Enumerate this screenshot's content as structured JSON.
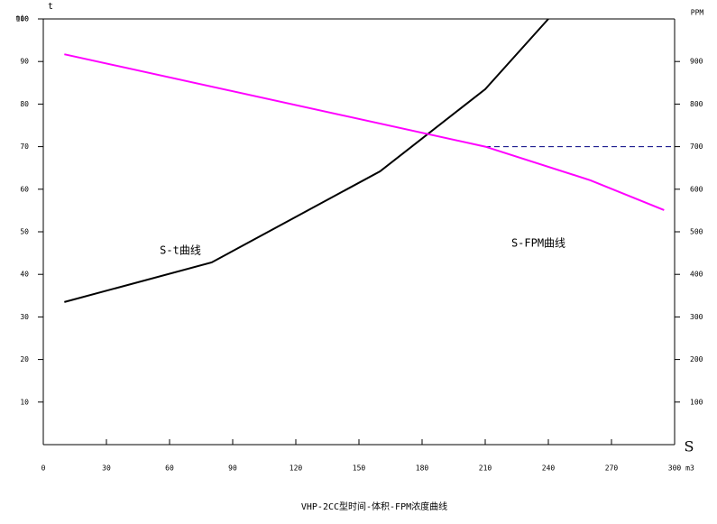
{
  "chart_data": {
    "type": "line",
    "title": "VHP-2CC型时间-体积-FPM浓度曲线",
    "y_label": "t",
    "y_unit": "min",
    "y2_unit": "PPM",
    "x_label": "S",
    "x_unit": "m3",
    "xlim": [
      0,
      300
    ],
    "xticks": [
      0,
      30,
      60,
      90,
      120,
      150,
      180,
      210,
      240,
      270,
      300
    ],
    "ylim": [
      0,
      100
    ],
    "yticks": [
      10,
      20,
      30,
      40,
      50,
      60,
      70,
      80,
      90,
      100
    ],
    "y2lim": [
      0,
      1000
    ],
    "y2ticks": [
      100,
      200,
      300,
      400,
      500,
      600,
      700,
      800,
      900
    ],
    "annotations": [
      "S-t曲线",
      "S-FPM曲线"
    ],
    "series": [
      {
        "name": "S-t曲线",
        "color": "#000000",
        "axis": "y",
        "x": [
          10,
          80,
          160,
          210,
          240
        ],
        "values": [
          33.5,
          42.8,
          64.2,
          83.5,
          100
        ]
      },
      {
        "name": "S-FPM曲线",
        "color": "#ff00ff",
        "axis": "y2",
        "x": [
          10,
          210,
          260,
          295
        ],
        "values": [
          917,
          700,
          621,
          551
        ]
      }
    ],
    "reference_line": {
      "y": 70,
      "x": [
        210,
        300
      ],
      "color": "#000080"
    }
  }
}
